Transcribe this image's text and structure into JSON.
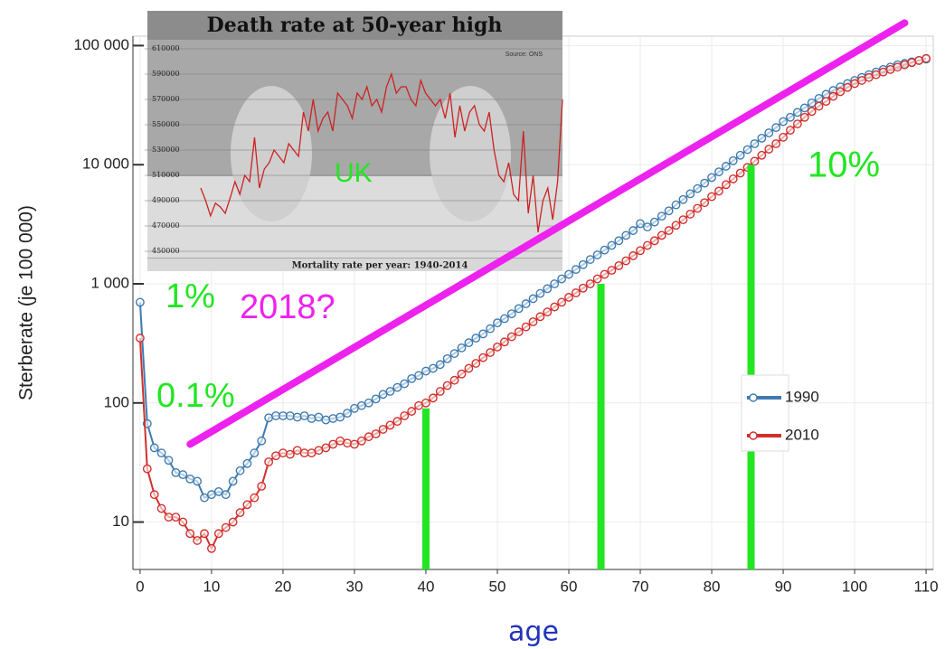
{
  "chart_data": [
    {
      "type": "line",
      "y_label": "Sterberate (je 100 000)",
      "x_label": "age",
      "log_y": true,
      "grid": true,
      "xlim": [
        -1,
        111
      ],
      "xticks": [
        0,
        10,
        20,
        30,
        40,
        50,
        60,
        70,
        80,
        90,
        100,
        110
      ],
      "ylim": [
        4,
        120000
      ],
      "yticks": [
        {
          "value": 10,
          "label": "10"
        },
        {
          "value": 100,
          "label": "100"
        },
        {
          "value": 1000,
          "label": "1 000"
        },
        {
          "value": 10000,
          "label": "10 000"
        },
        {
          "value": 100000,
          "label": "100 000"
        }
      ],
      "x": [
        0,
        1,
        2,
        3,
        4,
        5,
        6,
        7,
        8,
        9,
        10,
        11,
        12,
        13,
        14,
        15,
        16,
        17,
        18,
        19,
        20,
        21,
        22,
        23,
        24,
        25,
        26,
        27,
        28,
        29,
        30,
        31,
        32,
        33,
        34,
        35,
        36,
        37,
        38,
        39,
        40,
        41,
        42,
        43,
        44,
        45,
        46,
        47,
        48,
        49,
        50,
        51,
        52,
        53,
        54,
        55,
        56,
        57,
        58,
        59,
        60,
        61,
        62,
        63,
        64,
        65,
        66,
        67,
        68,
        69,
        70,
        71,
        72,
        73,
        74,
        75,
        76,
        77,
        78,
        79,
        80,
        81,
        82,
        83,
        84,
        85,
        86,
        87,
        88,
        89,
        90,
        91,
        92,
        93,
        94,
        95,
        96,
        97,
        98,
        99,
        100,
        101,
        102,
        103,
        104,
        105,
        106,
        107,
        108,
        109,
        110
      ],
      "series": [
        {
          "name": "1990",
          "color": "#3f7bb0",
          "values": [
            700,
            67,
            42,
            38,
            33,
            26,
            25,
            23,
            22,
            16,
            17,
            18,
            17,
            22,
            27,
            31,
            38,
            48,
            75,
            78,
            78,
            78,
            76,
            78,
            74,
            76,
            72,
            74,
            76,
            82,
            90,
            95,
            100,
            108,
            118,
            125,
            135,
            145,
            160,
            170,
            185,
            195,
            210,
            235,
            260,
            290,
            320,
            350,
            380,
            420,
            470,
            510,
            560,
            620,
            680,
            750,
            830,
            910,
            1000,
            1100,
            1200,
            1320,
            1450,
            1600,
            1750,
            1920,
            2100,
            2300,
            2550,
            2800,
            3200,
            3000,
            3300,
            3700,
            4100,
            4600,
            5100,
            5700,
            6300,
            7000,
            7800,
            8700,
            9700,
            10800,
            12000,
            13400,
            15000,
            16700,
            18500,
            20500,
            23000,
            25000,
            27500,
            30000,
            33000,
            36000,
            39000,
            42000,
            45000,
            48000,
            51000,
            54000,
            57000,
            60000,
            63000,
            66000,
            69000,
            71000,
            73000,
            75000,
            77000
          ]
        },
        {
          "name": "2010",
          "color": "#d0302c",
          "values": [
            350,
            28,
            17,
            13,
            11,
            11,
            10,
            8,
            7,
            8,
            6,
            8,
            9,
            10,
            12,
            14,
            16,
            20,
            32,
            36,
            38,
            37,
            40,
            38,
            38,
            40,
            42,
            45,
            48,
            46,
            45,
            48,
            52,
            55,
            60,
            65,
            70,
            78,
            85,
            95,
            100,
            110,
            125,
            140,
            155,
            175,
            195,
            215,
            240,
            265,
            295,
            325,
            360,
            395,
            435,
            480,
            530,
            580,
            640,
            700,
            770,
            840,
            920,
            1000,
            1100,
            1200,
            1300,
            1420,
            1560,
            1720,
            1900,
            2100,
            2300,
            2550,
            2800,
            3100,
            3450,
            3850,
            4300,
            4800,
            5400,
            6000,
            6800,
            7600,
            8500,
            9500,
            10700,
            12000,
            13500,
            15000,
            17000,
            19500,
            22000,
            25000,
            28000,
            31000,
            34000,
            37500,
            41000,
            44500,
            48000,
            51000,
            54000,
            57000,
            60000,
            63000,
            66000,
            69000,
            72000,
            75000,
            78000
          ]
        }
      ],
      "vertical_lines": {
        "color": "#22e622",
        "x": [
          40,
          64.5,
          85.5
        ],
        "y": [
          90,
          1000,
          10000
        ]
      },
      "trend_line": {
        "color": "#ee22ee",
        "x": [
          7,
          107
        ],
        "y": [
          45,
          155000
        ]
      },
      "annotations": [
        {
          "text": "UK",
          "color": "#22e622"
        },
        {
          "text": "1%",
          "color": "#22e622"
        },
        {
          "text": "2018?",
          "color": "#ee22ee"
        },
        {
          "text": "0.1%",
          "color": "#22e622"
        },
        {
          "text": "10%",
          "color": "#22e622"
        }
      ]
    },
    {
      "type": "line",
      "title": "Death rate at 50-year high",
      "source": "Source: ONS",
      "x_label": "Mortality rate per year: 1940-2014",
      "color": "#cc2222",
      "xlim": [
        1940,
        2014
      ],
      "ylim": [
        440000,
        615000
      ],
      "yticks": [
        450000,
        470000,
        490000,
        510000,
        530000,
        550000,
        570000,
        590000,
        610000
      ],
      "x": [
        1940,
        1941,
        1942,
        1943,
        1944,
        1945,
        1946,
        1947,
        1948,
        1949,
        1950,
        1951,
        1952,
        1953,
        1954,
        1955,
        1956,
        1957,
        1958,
        1959,
        1960,
        1961,
        1962,
        1963,
        1964,
        1965,
        1966,
        1967,
        1968,
        1969,
        1970,
        1971,
        1972,
        1973,
        1974,
        1975,
        1976,
        1977,
        1978,
        1979,
        1980,
        1981,
        1982,
        1983,
        1984,
        1985,
        1986,
        1987,
        1988,
        1989,
        1990,
        1991,
        1992,
        1993,
        1994,
        1995,
        1996,
        1997,
        1998,
        1999,
        2000,
        2001,
        2002,
        2003,
        2004,
        2005,
        2006,
        2007,
        2008,
        2009,
        2010,
        2011,
        2012,
        2013,
        2014
      ],
      "values": [
        500000,
        490000,
        478000,
        488000,
        485000,
        480000,
        492000,
        505000,
        495000,
        510000,
        505000,
        540000,
        500000,
        515000,
        520000,
        530000,
        525000,
        520000,
        535000,
        530000,
        525000,
        560000,
        545000,
        570000,
        545000,
        555000,
        560000,
        545000,
        575000,
        570000,
        565000,
        555000,
        575000,
        570000,
        580000,
        565000,
        570000,
        560000,
        580000,
        590000,
        575000,
        580000,
        580000,
        570000,
        565000,
        585000,
        575000,
        570000,
        565000,
        570000,
        555000,
        575000,
        540000,
        565000,
        545000,
        560000,
        565000,
        550000,
        545000,
        560000,
        530000,
        510000,
        505000,
        520000,
        495000,
        490000,
        545000,
        480000,
        510000,
        465000,
        490000,
        500000,
        475000,
        505000,
        570000
      ]
    }
  ]
}
